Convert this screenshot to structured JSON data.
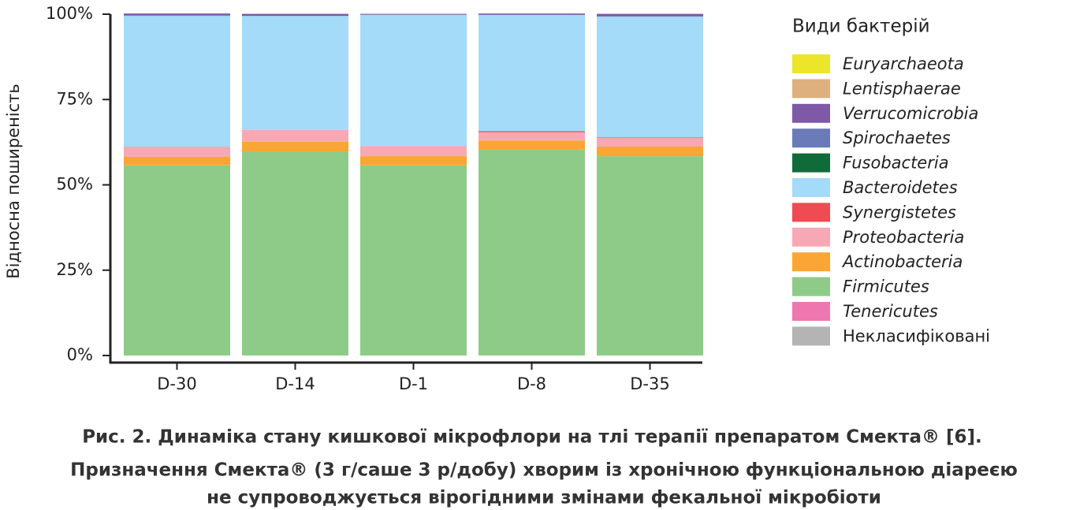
{
  "chart_data": {
    "type": "stacked_bar",
    "ylabel": "Відносна поширеність",
    "categories": [
      "D-30",
      "D-14",
      "D-1",
      "D-8",
      "D-35"
    ],
    "ylim": [
      0,
      100
    ],
    "yticks": [
      {
        "value": 0,
        "label": "0%"
      },
      {
        "value": 25,
        "label": "25%"
      },
      {
        "value": 50,
        "label": "50%"
      },
      {
        "value": 75,
        "label": "75%"
      },
      {
        "value": 100,
        "label": "100%"
      }
    ],
    "legend_title": "Види бактерій",
    "series": [
      {
        "name": "Euryarchaeota",
        "color": "#ece52a",
        "values": [
          0,
          0,
          0,
          0,
          0
        ]
      },
      {
        "name": "Lentisphaerae",
        "color": "#deb07e",
        "values": [
          0,
          0,
          0,
          0,
          0
        ]
      },
      {
        "name": "Verrucomicrobia",
        "color": "#7d59a8",
        "values": [
          0.5,
          0.6,
          0.2,
          0.4,
          0.7
        ]
      },
      {
        "name": "Spirochaetes",
        "color": "#6b7ab8",
        "values": [
          0.2,
          0,
          0.1,
          0,
          0.1
        ]
      },
      {
        "name": "Fusobacteria",
        "color": "#106b3a",
        "values": [
          0,
          0,
          0,
          0,
          0
        ]
      },
      {
        "name": "Bacteroidetes",
        "color": "#a3dbf8",
        "values": [
          38.3,
          33.4,
          38.4,
          34.1,
          35.4
        ]
      },
      {
        "name": "Synergistetes",
        "color": "#ee4b52",
        "values": [
          0,
          0,
          0,
          0.3,
          0.2
        ]
      },
      {
        "name": "Proteobacteria",
        "color": "#f6a9b5",
        "values": [
          3.0,
          3.5,
          3.0,
          2.4,
          2.5
        ]
      },
      {
        "name": "Actinobacteria",
        "color": "#fba534",
        "values": [
          2.5,
          2.8,
          2.7,
          2.7,
          2.8
        ]
      },
      {
        "name": "Firmicutes",
        "color": "#8fcb88",
        "values": [
          55.7,
          59.8,
          55.7,
          60.3,
          58.4
        ]
      },
      {
        "name": "Tenericutes",
        "color": "#ef77af",
        "values": [
          0,
          0,
          0,
          0,
          0
        ]
      },
      {
        "name": "Некласифіковані",
        "color": "#b4b4b4",
        "values": [
          0,
          0,
          0,
          0,
          0
        ]
      }
    ]
  },
  "caption": [
    "Рис. 2. Динаміка стану кишкової мікрофлори на тлі терапії препаратом Смекта® [6].",
    "Призначення Смекта® (3 г/саше 3 р/добу) хворим із хронічною функціональною діареєю",
    "не супроводжується вірогідними змінами фекальної мікробіоти"
  ]
}
